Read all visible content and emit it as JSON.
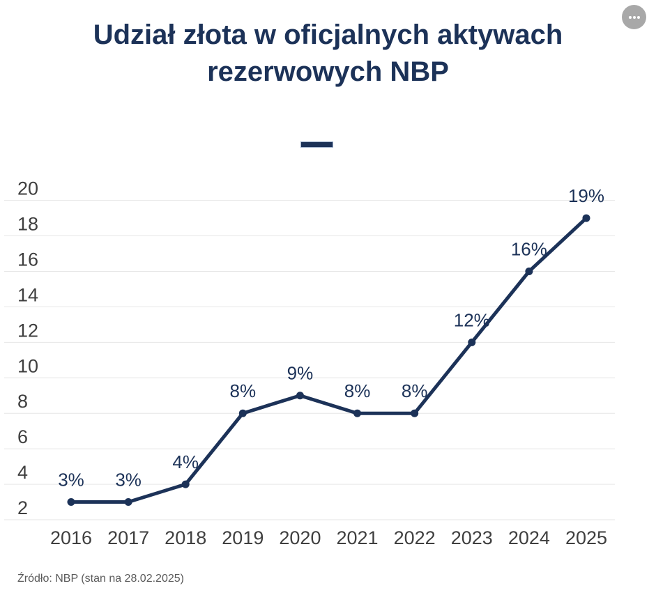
{
  "header": {
    "title_line1": "Udział złota w oficjalnych aktywach",
    "title_line2": "rezerwowych NBP"
  },
  "menu": {
    "icon": "ellipsis-icon"
  },
  "legend": {
    "marker": "series-line-dash"
  },
  "footer": {
    "source": "Źródło: NBP (stan na 28.02.2025)"
  },
  "colors": {
    "accent_navy": "#1c3258",
    "axis_label": "#3f3f3f",
    "gridline": "#e6e6e6",
    "source_text": "#5a5a5a",
    "menu_button": "#a8a8a8"
  },
  "chart_data": {
    "type": "line",
    "title": "Udział złota w oficjalnych aktywach rezerwowych NBP",
    "categories": [
      "2016",
      "2017",
      "2018",
      "2019",
      "2020",
      "2021",
      "2022",
      "2023",
      "2024",
      "2025"
    ],
    "values": [
      3,
      3,
      4,
      8,
      9,
      8,
      8,
      12,
      16,
      19
    ],
    "data_labels": [
      "3%",
      "3%",
      "4%",
      "8%",
      "9%",
      "8%",
      "8%",
      "12%",
      "16%",
      "19%"
    ],
    "xlabel": "",
    "ylabel": "",
    "ylim": [
      2,
      20
    ],
    "y_ticks": [
      2,
      4,
      6,
      8,
      10,
      12,
      14,
      16,
      18,
      20
    ],
    "grid": true,
    "legend_position": "top-center",
    "series_color": "#1c3258",
    "marker": "circle"
  }
}
